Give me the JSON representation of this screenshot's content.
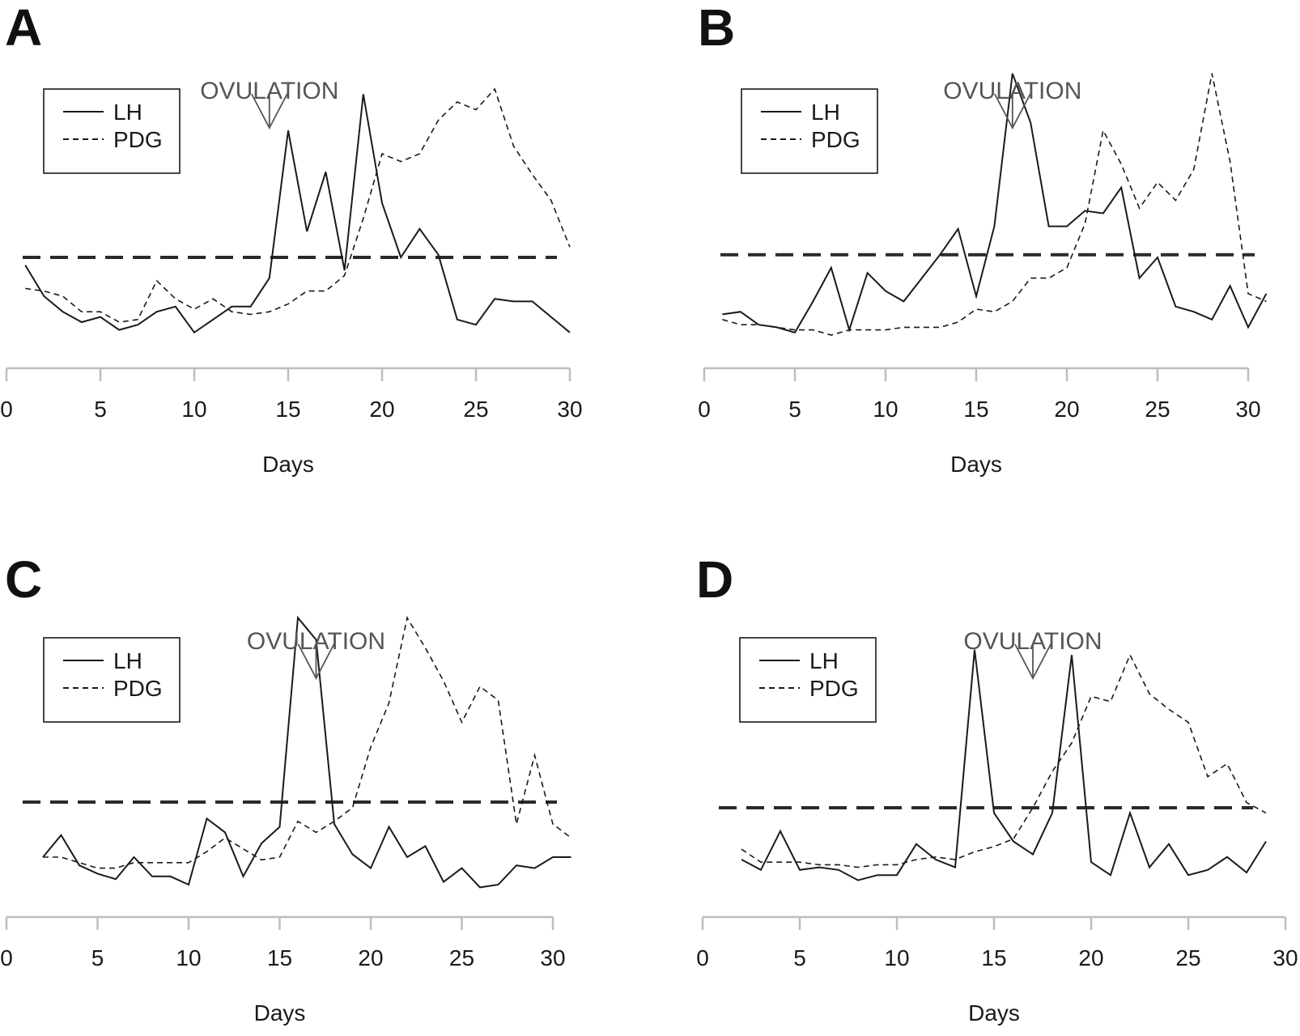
{
  "chart_data": [
    {
      "panel": "A",
      "type": "line",
      "xlabel": "Days",
      "ylabel": "",
      "xlim": [
        0,
        30
      ],
      "xticks": [
        0,
        5,
        10,
        15,
        20,
        25,
        30
      ],
      "ylim": [
        0,
        100
      ],
      "threshold": 35,
      "annotation": {
        "text": "OVULATION",
        "x": 14
      },
      "legend": [
        {
          "name": "LH",
          "style": "solid"
        },
        {
          "name": "PDG",
          "style": "dashed"
        }
      ],
      "series": [
        {
          "name": "LH",
          "style": "solid",
          "x": [
            1,
            2,
            3,
            4,
            5,
            6,
            7,
            8,
            9,
            10,
            11,
            12,
            13,
            14,
            15,
            16,
            17,
            18,
            19,
            20,
            21,
            22,
            23,
            24,
            25,
            26,
            27,
            28,
            29,
            30
          ],
          "values": [
            32,
            20,
            14,
            10,
            12,
            7,
            9,
            14,
            16,
            6,
            11,
            16,
            16,
            27,
            84,
            45,
            68,
            30,
            98,
            56,
            35,
            46,
            36,
            11,
            9,
            19,
            18,
            18,
            12,
            6
          ]
        },
        {
          "name": "PDG",
          "style": "dashed",
          "x": [
            1,
            2,
            3,
            4,
            5,
            6,
            7,
            8,
            9,
            10,
            11,
            12,
            13,
            14,
            15,
            16,
            17,
            18,
            19,
            20,
            21,
            22,
            23,
            24,
            25,
            26,
            27,
            28,
            29,
            30
          ],
          "values": [
            23,
            22,
            20,
            14,
            14,
            10,
            11,
            26,
            19,
            15,
            19,
            14,
            13,
            14,
            17,
            22,
            22,
            28,
            50,
            75,
            72,
            75,
            88,
            95,
            92,
            100,
            78,
            67,
            57,
            39
          ]
        }
      ]
    },
    {
      "panel": "B",
      "type": "line",
      "xlabel": "Days",
      "ylabel": "",
      "xlim": [
        0,
        31
      ],
      "xticks": [
        0,
        5,
        10,
        15,
        20,
        25,
        30
      ],
      "ylim": [
        0,
        100
      ],
      "threshold": 36,
      "annotation": {
        "text": "OVULATION",
        "x": 17
      },
      "legend": [
        {
          "name": "LH",
          "style": "solid"
        },
        {
          "name": "PDG",
          "style": "dashed"
        }
      ],
      "series": [
        {
          "name": "LH",
          "style": "solid",
          "x": [
            1,
            2,
            3,
            4,
            5,
            6,
            7,
            8,
            9,
            10,
            11,
            12,
            13,
            14,
            15,
            16,
            17,
            18,
            19,
            20,
            21,
            22,
            23,
            24,
            25,
            26,
            27,
            28,
            29,
            30,
            31
          ],
          "values": [
            13,
            14,
            9,
            8,
            6,
            18,
            31,
            7,
            29,
            22,
            18,
            27,
            36,
            46,
            20,
            47,
            106,
            87,
            47,
            47,
            53,
            52,
            62,
            27,
            35,
            16,
            14,
            11,
            24,
            8,
            21
          ]
        },
        {
          "name": "PDG",
          "style": "dashed",
          "x": [
            1,
            2,
            3,
            4,
            5,
            6,
            7,
            8,
            9,
            10,
            11,
            12,
            13,
            14,
            15,
            16,
            17,
            18,
            19,
            20,
            21,
            22,
            23,
            24,
            25,
            26,
            27,
            28,
            29,
            30,
            31
          ],
          "values": [
            11,
            9,
            9,
            8,
            7,
            7,
            5,
            7,
            7,
            7,
            8,
            8,
            8,
            10,
            15,
            14,
            18,
            27,
            27,
            31,
            48,
            84,
            71,
            54,
            64,
            57,
            69,
            106,
            72,
            21,
            18
          ]
        }
      ]
    },
    {
      "panel": "C",
      "type": "line",
      "xlabel": "Days",
      "ylabel": "",
      "xlim": [
        0,
        31
      ],
      "xticks": [
        0,
        5,
        10,
        15,
        20,
        25,
        30
      ],
      "ylim": [
        0,
        100
      ],
      "threshold": 35,
      "annotation": {
        "text": "OVULATION",
        "x": 17
      },
      "legend": [
        {
          "name": "LH",
          "style": "solid"
        },
        {
          "name": "PDG",
          "style": "dashed"
        }
      ],
      "series": [
        {
          "name": "LH",
          "style": "solid",
          "x": [
            2,
            3,
            4,
            5,
            6,
            7,
            8,
            9,
            10,
            11,
            12,
            13,
            14,
            15,
            16,
            17,
            18,
            19,
            20,
            21,
            22,
            23,
            24,
            25,
            26,
            27,
            28,
            29,
            30,
            31
          ],
          "values": [
            15,
            23,
            12,
            9,
            7,
            15,
            8,
            8,
            5,
            29,
            24,
            8,
            20,
            26,
            102,
            94,
            27,
            16,
            11,
            26,
            15,
            19,
            6,
            11,
            4,
            5,
            12,
            11,
            15,
            15
          ]
        },
        {
          "name": "PDG",
          "style": "dashed",
          "x": [
            2,
            3,
            4,
            5,
            6,
            7,
            8,
            9,
            10,
            11,
            12,
            13,
            14,
            15,
            16,
            17,
            18,
            19,
            20,
            21,
            22,
            23,
            24,
            25,
            26,
            27,
            28,
            29,
            30,
            31
          ],
          "values": [
            15,
            15,
            13,
            11,
            11,
            13,
            13,
            13,
            13,
            17,
            22,
            18,
            14,
            15,
            28,
            24,
            28,
            33,
            55,
            71,
            102,
            91,
            79,
            64,
            77,
            72,
            27,
            52,
            27,
            22
          ]
        }
      ]
    },
    {
      "panel": "D",
      "type": "line",
      "xlabel": "Days",
      "ylabel": "",
      "xlim": [
        0,
        30
      ],
      "xticks": [
        0,
        5,
        10,
        15,
        20,
        25,
        30
      ],
      "ylim": [
        0,
        100
      ],
      "threshold": 35,
      "annotation": {
        "text": "OVULATION",
        "x": 17
      },
      "legend": [
        {
          "name": "LH",
          "style": "solid"
        },
        {
          "name": "PDG",
          "style": "dashed"
        }
      ],
      "series": [
        {
          "name": "LH",
          "style": "solid",
          "x": [
            2,
            3,
            4,
            5,
            6,
            7,
            8,
            9,
            10,
            11,
            12,
            13,
            14,
            15,
            16,
            17,
            18,
            19,
            20,
            21,
            22,
            23,
            24,
            25,
            26,
            27,
            28,
            29
          ],
          "values": [
            15,
            11,
            26,
            11,
            12,
            11,
            7,
            9,
            9,
            21,
            15,
            12,
            96,
            33,
            22,
            17,
            33,
            94,
            14,
            9,
            33,
            12,
            21,
            9,
            11,
            16,
            10,
            22
          ]
        },
        {
          "name": "PDG",
          "style": "dashed",
          "x": [
            2,
            3,
            4,
            5,
            6,
            7,
            8,
            9,
            10,
            11,
            12,
            13,
            14,
            15,
            16,
            17,
            18,
            19,
            20,
            21,
            22,
            23,
            24,
            25,
            26,
            27,
            28,
            29
          ],
          "values": [
            19,
            14,
            14,
            14,
            13,
            13,
            12,
            13,
            13,
            15,
            16,
            15,
            18,
            20,
            23,
            35,
            49,
            60,
            78,
            76,
            94,
            79,
            73,
            68,
            47,
            52,
            37,
            33
          ]
        }
      ]
    }
  ]
}
